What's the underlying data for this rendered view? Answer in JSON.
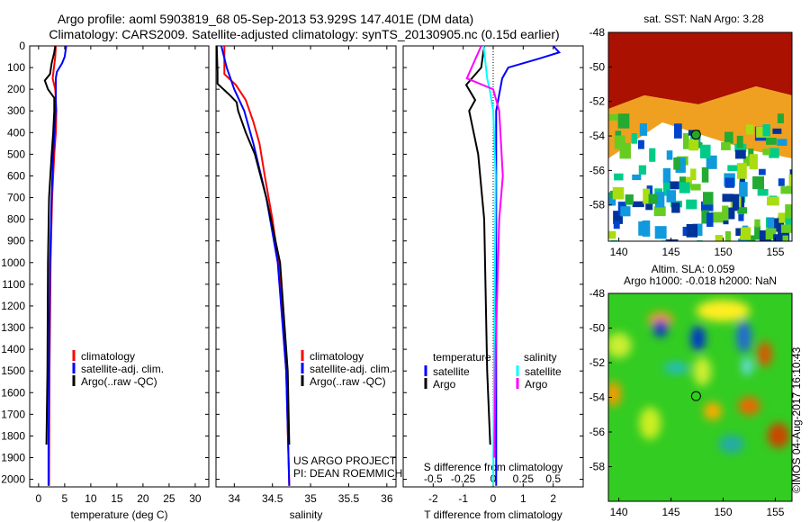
{
  "title_line1": "Argo profile: aoml 5903819_68 05-Sep-2013 53.929S 147.401E (DM data)",
  "title_line2": "Climatology: CARS2009. Satellite-adjusted climatology: synTS_20130905.nc (0.15d earlier)",
  "colors": {
    "climatology": "#ff0000",
    "satellite": "#0000ff",
    "argo": "#000000",
    "sal_satellite": "#00ffff",
    "sal_argo": "#ff00ff"
  },
  "depth_axis": {
    "ticks": [
      0,
      100,
      200,
      300,
      400,
      500,
      600,
      700,
      800,
      900,
      1000,
      1100,
      1200,
      1300,
      1400,
      1500,
      1600,
      1700,
      1800,
      1900,
      2000
    ],
    "ylim": [
      0,
      2035
    ]
  },
  "chart_data": [
    {
      "type": "line",
      "id": "temperature",
      "xlabel": "temperature (deg C)",
      "xlim": [
        -1.7,
        32.6
      ],
      "xticks": [
        0,
        5,
        10,
        15,
        20,
        25,
        30
      ],
      "legend": [
        "climatology",
        "satellite-adj. clim.",
        "Argo(..raw -QC)"
      ],
      "legend_position": "bottom-center",
      "series": [
        {
          "name": "climatology",
          "color": "#ff0000",
          "depth": [
            0,
            50,
            150,
            200,
            300,
            400,
            500,
            700,
            1000,
            1500,
            2030
          ],
          "values": [
            3.3,
            3.2,
            2.7,
            3.2,
            3.4,
            3.3,
            3.0,
            2.6,
            2.3,
            2.1,
            2.0
          ]
        },
        {
          "name": "satellite-adj. clim.",
          "color": "#0000ff",
          "depth": [
            0,
            50,
            80,
            120,
            150,
            300,
            500,
            700,
            1000,
            1500,
            1850,
            2030
          ],
          "values": [
            5.3,
            5.0,
            4.5,
            3.5,
            3.3,
            3.3,
            2.8,
            2.5,
            2.2,
            2.0,
            1.9,
            1.9
          ]
        },
        {
          "name": "Argo(..raw -QC)",
          "color": "#000000",
          "depth": [
            0,
            30,
            80,
            130,
            160,
            200,
            240,
            300,
            400,
            500,
            700,
            1000,
            1500,
            1840
          ],
          "values": [
            3.2,
            3.0,
            2.5,
            2.2,
            1.2,
            1.8,
            3.0,
            3.0,
            2.8,
            2.5,
            2.0,
            1.8,
            1.7,
            1.5
          ]
        }
      ]
    },
    {
      "type": "line",
      "id": "salinity",
      "xlabel": "salinity",
      "xlim": [
        33.76,
        36.12
      ],
      "xticks": [
        34,
        34.5,
        35,
        35.5,
        36
      ],
      "legend": [
        "climatology",
        "satellite-adj. clim.",
        "Argo(..raw -QC)"
      ],
      "legend_position": "bottom-right",
      "annotation": [
        "US ARGO PROJECT",
        "PI: DEAN ROEMMICH"
      ],
      "series": [
        {
          "name": "climatology",
          "color": "#ff0000",
          "depth": [
            0,
            130,
            180,
            250,
            350,
            450,
            600,
            800,
            1000,
            1500,
            2030
          ],
          "values": [
            33.87,
            33.87,
            34.02,
            34.15,
            34.25,
            34.33,
            34.4,
            34.5,
            34.58,
            34.68,
            34.72
          ]
        },
        {
          "name": "satellite-adj. clim.",
          "color": "#0000ff",
          "depth": [
            0,
            100,
            200,
            300,
            450,
            700,
            1000,
            1500,
            2030
          ],
          "values": [
            33.83,
            33.9,
            34.0,
            34.13,
            34.25,
            34.42,
            34.57,
            34.68,
            34.72
          ]
        },
        {
          "name": "Argo(..raw -QC)",
          "color": "#000000",
          "depth": [
            0,
            120,
            175,
            230,
            260,
            300,
            400,
            500,
            700,
            1000,
            1500,
            1840
          ],
          "values": [
            33.77,
            33.78,
            33.78,
            33.95,
            34.03,
            34.05,
            34.15,
            34.27,
            34.42,
            34.6,
            34.7,
            34.72
          ]
        }
      ]
    },
    {
      "type": "line",
      "id": "difference",
      "xlabel": "T difference from climatology",
      "xlim": [
        -3,
        3
      ],
      "xticks": [
        -2,
        -1,
        0,
        1,
        2
      ],
      "x2label": "S difference from climatology",
      "x2lim": [
        -0.75,
        0.75
      ],
      "x2ticks": [
        -0.5,
        -0.25,
        0,
        0.25,
        0.5
      ],
      "legend_temperature_title": "temperature",
      "legend_salinity_title": "salinity",
      "series": [
        {
          "name": "satellite",
          "group": "temperature",
          "axis": "T",
          "color": "#0000ff",
          "depth": [
            0,
            30,
            60,
            100,
            150,
            300,
            2030
          ],
          "values": [
            2.0,
            2.2,
            1.5,
            0.5,
            0.3,
            0.1,
            0.1
          ]
        },
        {
          "name": "Argo",
          "group": "temperature",
          "axis": "T",
          "color": "#000000",
          "depth": [
            0,
            100,
            180,
            250,
            300,
            500,
            800,
            1500,
            1840
          ],
          "values": [
            -0.3,
            -0.4,
            -0.9,
            -0.6,
            -0.8,
            -0.5,
            -0.3,
            -0.2,
            -0.1
          ]
        },
        {
          "name": "satellite",
          "group": "salinity",
          "axis": "S",
          "color": "#00ffff",
          "depth": [
            0,
            150,
            200,
            300,
            600,
            2030
          ],
          "values": [
            -0.08,
            -0.05,
            -0.03,
            0.0,
            0.02,
            0.0
          ]
        },
        {
          "name": "Argo",
          "group": "salinity",
          "axis": "S",
          "color": "#ff00ff",
          "depth": [
            0,
            150,
            200,
            300,
            600,
            800,
            1400,
            1900
          ],
          "values": [
            -0.1,
            -0.22,
            0.0,
            0.05,
            0.08,
            0.05,
            0.02,
            0.01
          ]
        }
      ]
    },
    {
      "type": "heatmap",
      "id": "sst-map",
      "title": "sat. SST: NaN Argo: 3.28",
      "xlim": [
        139,
        156.6
      ],
      "ylim": [
        -60.1,
        -48
      ],
      "xticks": [
        140,
        145,
        150,
        155
      ],
      "yticks": [
        -48,
        -50,
        -52,
        -54,
        -56,
        -58
      ],
      "marker": {
        "lon": 147.401,
        "lat": -53.929
      }
    },
    {
      "type": "heatmap",
      "id": "sla-map",
      "title1": "Altim. SLA: 0.059",
      "title2": "Argo h1000: -0.018 h2000: NaN",
      "xlim": [
        139,
        156.6
      ],
      "ylim": [
        -60,
        -48
      ],
      "xticks": [
        140,
        145,
        150,
        155
      ],
      "yticks": [
        -48,
        -50,
        -52,
        -54,
        -56,
        -58
      ],
      "marker": {
        "lon": 147.401,
        "lat": -53.929
      }
    }
  ],
  "credit": "©IMOS 04-Aug-2017 16:10:43"
}
